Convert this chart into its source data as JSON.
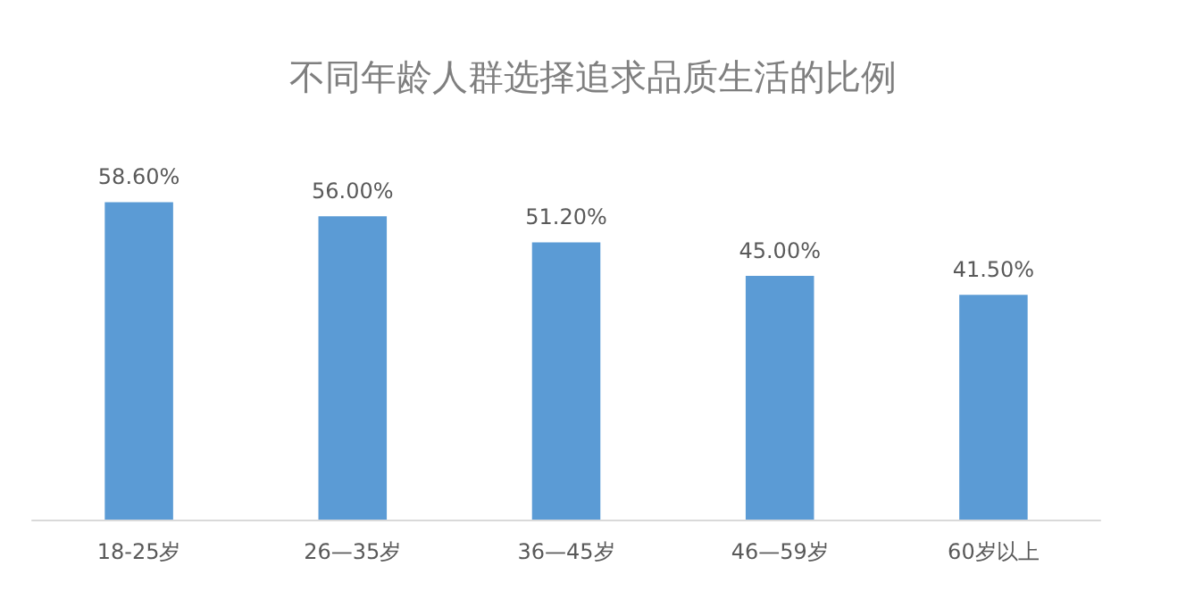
{
  "chart_data": {
    "type": "bar",
    "title": "不同年龄人群选择追求品质生活的比例",
    "categories": [
      "18-25岁",
      "26—35岁",
      "36—45岁",
      "46—59岁",
      "60岁以上"
    ],
    "values": [
      58.6,
      56.0,
      51.2,
      45.0,
      41.5
    ],
    "value_labels": [
      "58.60%",
      "56.00%",
      "51.20%",
      "45.00%",
      "41.50%"
    ],
    "color": "#5b9bd5"
  }
}
